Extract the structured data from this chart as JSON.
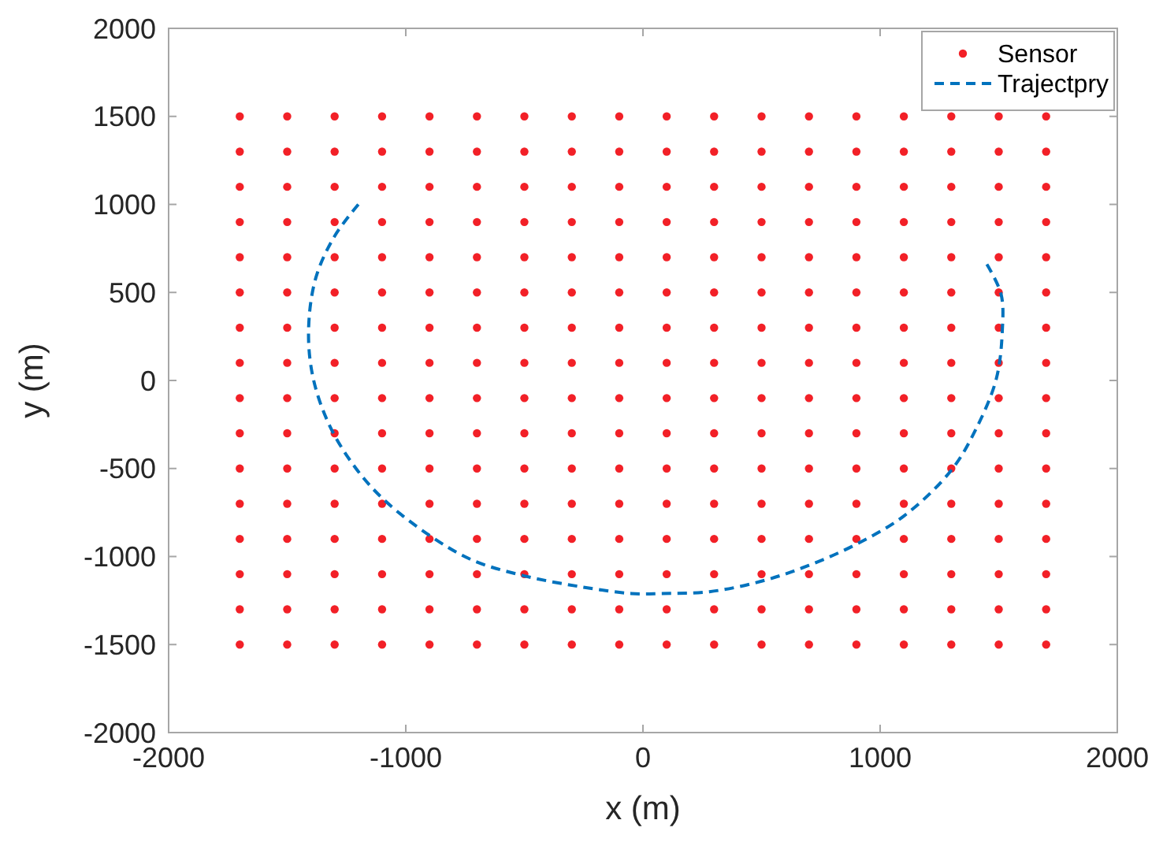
{
  "chart_data": {
    "type": "scatter",
    "xlabel": "x (m)",
    "ylabel": "y (m)",
    "xlim": [
      -2000,
      2000
    ],
    "ylim": [
      -2000,
      2000
    ],
    "xticks": [
      -2000,
      -1000,
      0,
      1000,
      2000
    ],
    "yticks": [
      -2000,
      -1500,
      -1000,
      -500,
      0,
      500,
      1000,
      1500,
      2000
    ],
    "grid": false,
    "legend": "top right",
    "series": [
      {
        "name": "Sensor",
        "marker": "circle",
        "color": "#f22027",
        "x": [
          -1700,
          -1500,
          -1300,
          -1100,
          -900,
          -700,
          -500,
          -300,
          -100,
          100,
          300,
          500,
          700,
          900,
          1100,
          1300,
          1500,
          1700,
          -1700,
          -1500,
          -1300,
          -1100,
          -900,
          -700,
          -500,
          -300,
          -100,
          100,
          300,
          500,
          700,
          900,
          1100,
          1300,
          1500,
          1700,
          -1700,
          -1500,
          -1300,
          -1100,
          -900,
          -700,
          -500,
          -300,
          -100,
          100,
          300,
          500,
          700,
          900,
          1100,
          1300,
          1500,
          1700,
          -1700,
          -1500,
          -1300,
          -1100,
          -900,
          -700,
          -500,
          -300,
          -100,
          100,
          300,
          500,
          700,
          900,
          1100,
          1300,
          1500,
          1700,
          -1700,
          -1500,
          -1300,
          -1100,
          -900,
          -700,
          -500,
          -300,
          -100,
          100,
          300,
          500,
          700,
          900,
          1100,
          1300,
          1500,
          1700,
          -1700,
          -1500,
          -1300,
          -1100,
          -900,
          -700,
          -500,
          -300,
          -100,
          100,
          300,
          500,
          700,
          900,
          1100,
          1300,
          1500,
          1700,
          -1700,
          -1500,
          -1300,
          -1100,
          -900,
          -700,
          -500,
          -300,
          -100,
          100,
          300,
          500,
          700,
          900,
          1100,
          1300,
          1500,
          1700,
          -1700,
          -1500,
          -1300,
          -1100,
          -900,
          -700,
          -500,
          -300,
          -100,
          100,
          300,
          500,
          700,
          900,
          1100,
          1300,
          1500,
          1700,
          -1700,
          -1500,
          -1300,
          -1100,
          -900,
          -700,
          -500,
          -300,
          -100,
          100,
          300,
          500,
          700,
          900,
          1100,
          1300,
          1500,
          1700,
          -1700,
          -1500,
          -1300,
          -1100,
          -900,
          -700,
          -500,
          -300,
          -100,
          100,
          300,
          500,
          700,
          900,
          1100,
          1300,
          1500,
          1700,
          -1700,
          -1500,
          -1300,
          -1100,
          -900,
          -700,
          -500,
          -300,
          -100,
          100,
          300,
          500,
          700,
          900,
          1100,
          1300,
          1500,
          1700,
          -1700,
          -1500,
          -1300,
          -1100,
          -900,
          -700,
          -500,
          -300,
          -100,
          100,
          300,
          500,
          700,
          900,
          1100,
          1300,
          1500,
          1700,
          -1700,
          -1500,
          -1300,
          -1100,
          -900,
          -700,
          -500,
          -300,
          -100,
          100,
          300,
          500,
          700,
          900,
          1100,
          1300,
          1500,
          1700,
          -1700,
          -1500,
          -1300,
          -1100,
          -900,
          -700,
          -500,
          -300,
          -100,
          100,
          300,
          500,
          700,
          900,
          1100,
          1300,
          1500,
          1700,
          -1700,
          -1500,
          -1300,
          -1100,
          -900,
          -700,
          -500,
          -300,
          -100,
          100,
          300,
          500,
          700,
          900,
          1100,
          1300,
          1500,
          1700,
          -1700,
          -1500,
          -1300,
          -1100,
          -900,
          -700,
          -500,
          -300,
          -100,
          100,
          300,
          500,
          700,
          900,
          1100,
          1300,
          1500,
          1700
        ],
        "values": [
          1500,
          1500,
          1500,
          1500,
          1500,
          1500,
          1500,
          1500,
          1500,
          1500,
          1500,
          1500,
          1500,
          1500,
          1500,
          1500,
          1500,
          1500,
          1300,
          1300,
          1300,
          1300,
          1300,
          1300,
          1300,
          1300,
          1300,
          1300,
          1300,
          1300,
          1300,
          1300,
          1300,
          1300,
          1300,
          1300,
          1100,
          1100,
          1100,
          1100,
          1100,
          1100,
          1100,
          1100,
          1100,
          1100,
          1100,
          1100,
          1100,
          1100,
          1100,
          1100,
          1100,
          1100,
          900,
          900,
          900,
          900,
          900,
          900,
          900,
          900,
          900,
          900,
          900,
          900,
          900,
          900,
          900,
          900,
          900,
          900,
          700,
          700,
          700,
          700,
          700,
          700,
          700,
          700,
          700,
          700,
          700,
          700,
          700,
          700,
          700,
          700,
          700,
          700,
          500,
          500,
          500,
          500,
          500,
          500,
          500,
          500,
          500,
          500,
          500,
          500,
          500,
          500,
          500,
          500,
          500,
          500,
          300,
          300,
          300,
          300,
          300,
          300,
          300,
          300,
          300,
          300,
          300,
          300,
          300,
          300,
          300,
          300,
          300,
          300,
          100,
          100,
          100,
          100,
          100,
          100,
          100,
          100,
          100,
          100,
          100,
          100,
          100,
          100,
          100,
          100,
          100,
          100,
          -100,
          -100,
          -100,
          -100,
          -100,
          -100,
          -100,
          -100,
          -100,
          -100,
          -100,
          -100,
          -100,
          -100,
          -100,
          -100,
          -100,
          -100,
          -300,
          -300,
          -300,
          -300,
          -300,
          -300,
          -300,
          -300,
          -300,
          -300,
          -300,
          -300,
          -300,
          -300,
          -300,
          -300,
          -300,
          -300,
          -500,
          -500,
          -500,
          -500,
          -500,
          -500,
          -500,
          -500,
          -500,
          -500,
          -500,
          -500,
          -500,
          -500,
          -500,
          -500,
          -500,
          -500,
          -700,
          -700,
          -700,
          -700,
          -700,
          -700,
          -700,
          -700,
          -700,
          -700,
          -700,
          -700,
          -700,
          -700,
          -700,
          -700,
          -700,
          -700,
          -900,
          -900,
          -900,
          -900,
          -900,
          -900,
          -900,
          -900,
          -900,
          -900,
          -900,
          -900,
          -900,
          -900,
          -900,
          -900,
          -900,
          -900,
          -1100,
          -1100,
          -1100,
          -1100,
          -1100,
          -1100,
          -1100,
          -1100,
          -1100,
          -1100,
          -1100,
          -1100,
          -1100,
          -1100,
          -1100,
          -1100,
          -1100,
          -1100,
          -1300,
          -1300,
          -1300,
          -1300,
          -1300,
          -1300,
          -1300,
          -1300,
          -1300,
          -1300,
          -1300,
          -1300,
          -1300,
          -1300,
          -1300,
          -1300,
          -1300,
          -1300,
          -1500,
          -1500,
          -1500,
          -1500,
          -1500,
          -1500,
          -1500,
          -1500,
          -1500,
          -1500,
          -1500,
          -1500,
          -1500,
          -1500,
          -1500,
          -1500,
          -1500,
          -1500
        ]
      },
      {
        "name": "Trajectpry",
        "type": "line",
        "line_style": "dashed",
        "color": "#0072bd",
        "x": [
          -1200,
          -1300,
          -1380,
          -1410,
          -1390,
          -1320,
          -1210,
          -1090,
          -900,
          -720,
          -500,
          -270,
          -50,
          80,
          280,
          500,
          700,
          900,
          1100,
          1300,
          1410,
          1490,
          1515,
          1510,
          1450
        ],
        "values": [
          1000,
          820,
          580,
          280,
          10,
          -260,
          -500,
          -680,
          -880,
          -1020,
          -1110,
          -1170,
          -1210,
          -1210,
          -1200,
          -1140,
          -1050,
          -930,
          -770,
          -510,
          -260,
          10,
          280,
          490,
          660
        ]
      }
    ]
  }
}
